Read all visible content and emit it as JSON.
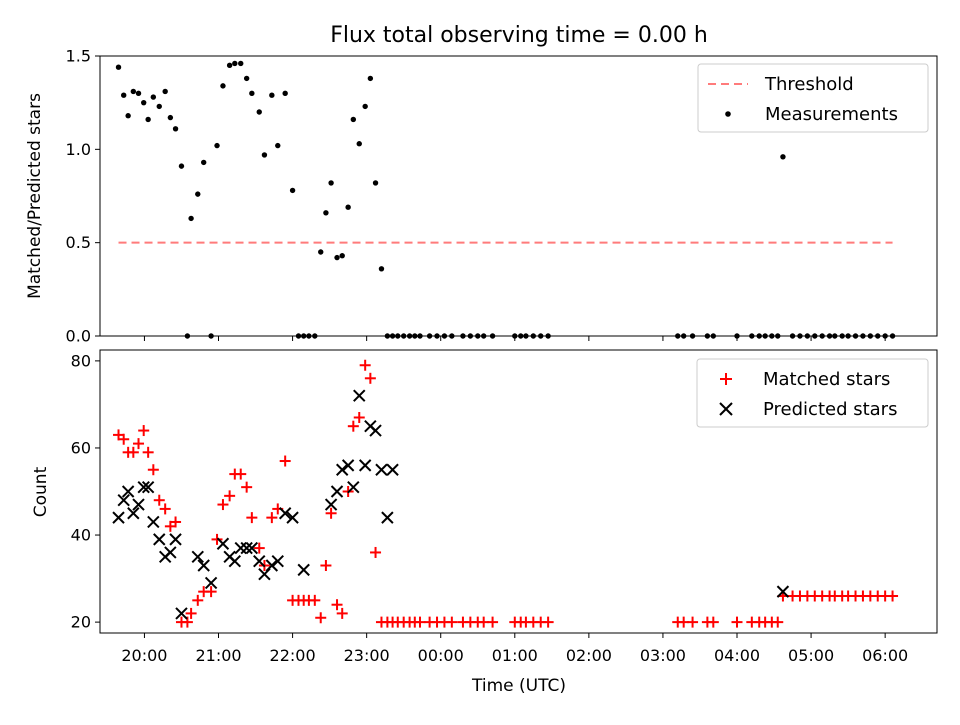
{
  "chart_data": [
    {
      "type": "scatter",
      "panel": "top",
      "title": "Flux total observing time = 0.00 h",
      "xlabel": "",
      "ylabel": "Matched/Predicted stars",
      "ylim": [
        0.0,
        1.5
      ],
      "yticks": [
        0.0,
        0.5,
        1.0,
        1.5
      ],
      "ytick_labels": [
        "0.0",
        "0.5",
        "1.0",
        "1.5"
      ],
      "xlim": [
        19.4,
        6.7
      ],
      "legend": {
        "position": "top-right",
        "entries": [
          "Threshold",
          "Measurements"
        ]
      },
      "threshold": {
        "name": "Threshold",
        "value": 0.5,
        "x_start": 19.65,
        "x_end": 6.1,
        "color": "#ff7b7b"
      },
      "series": [
        {
          "name": "Measurements",
          "color": "#000000",
          "marker": "dot",
          "points": [
            [
              19.65,
              1.44
            ],
            [
              19.72,
              1.29
            ],
            [
              19.78,
              1.18
            ],
            [
              19.85,
              1.31
            ],
            [
              19.92,
              1.3
            ],
            [
              19.99,
              1.25
            ],
            [
              20.05,
              1.16
            ],
            [
              20.12,
              1.28
            ],
            [
              20.2,
              1.23
            ],
            [
              20.28,
              1.31
            ],
            [
              20.35,
              1.17
            ],
            [
              20.42,
              1.11
            ],
            [
              20.5,
              0.91
            ],
            [
              20.58,
              0.0
            ],
            [
              20.63,
              0.63
            ],
            [
              20.72,
              0.76
            ],
            [
              20.8,
              0.93
            ],
            [
              20.9,
              0.0
            ],
            [
              20.98,
              1.02
            ],
            [
              21.06,
              1.34
            ],
            [
              21.15,
              1.45
            ],
            [
              21.22,
              1.46
            ],
            [
              21.3,
              1.46
            ],
            [
              21.38,
              1.38
            ],
            [
              21.45,
              1.3
            ],
            [
              21.55,
              1.2
            ],
            [
              21.62,
              0.97
            ],
            [
              21.72,
              1.29
            ],
            [
              21.8,
              1.02
            ],
            [
              21.9,
              1.3
            ],
            [
              22.0,
              0.78
            ],
            [
              22.08,
              0.0
            ],
            [
              22.15,
              0.0
            ],
            [
              22.22,
              0.0
            ],
            [
              22.3,
              0.0
            ],
            [
              22.38,
              0.45
            ],
            [
              22.45,
              0.66
            ],
            [
              22.52,
              0.82
            ],
            [
              22.6,
              0.42
            ],
            [
              22.67,
              0.43
            ],
            [
              22.75,
              0.69
            ],
            [
              22.82,
              1.16
            ],
            [
              22.9,
              1.03
            ],
            [
              22.98,
              1.23
            ],
            [
              23.05,
              1.38
            ],
            [
              23.12,
              0.82
            ],
            [
              23.2,
              0.36
            ],
            [
              23.28,
              0.0
            ],
            [
              23.35,
              0.0
            ],
            [
              23.42,
              0.0
            ],
            [
              23.5,
              0.0
            ],
            [
              23.58,
              0.0
            ],
            [
              23.65,
              0.0
            ],
            [
              23.72,
              0.0
            ],
            [
              23.85,
              0.0
            ],
            [
              23.95,
              0.0
            ],
            [
              24.05,
              0.0
            ],
            [
              24.15,
              0.0
            ],
            [
              24.3,
              0.0
            ],
            [
              24.4,
              0.0
            ],
            [
              24.5,
              0.0
            ],
            [
              24.58,
              0.0
            ],
            [
              24.7,
              0.0
            ],
            [
              25.0,
              0.0
            ],
            [
              25.08,
              0.0
            ],
            [
              25.15,
              0.0
            ],
            [
              25.25,
              0.0
            ],
            [
              25.35,
              0.0
            ],
            [
              25.45,
              0.0
            ],
            [
              27.2,
              0.0
            ],
            [
              27.28,
              0.0
            ],
            [
              27.4,
              0.0
            ],
            [
              27.6,
              0.0
            ],
            [
              27.68,
              0.0
            ],
            [
              28.0,
              0.0
            ],
            [
              28.2,
              0.0
            ],
            [
              28.3,
              0.0
            ],
            [
              28.38,
              0.0
            ],
            [
              28.47,
              0.0
            ],
            [
              28.55,
              0.0
            ],
            [
              28.62,
              0.96
            ],
            [
              28.75,
              0.0
            ],
            [
              28.85,
              0.0
            ],
            [
              28.95,
              0.0
            ],
            [
              29.05,
              0.0
            ],
            [
              29.15,
              0.0
            ],
            [
              29.25,
              0.0
            ],
            [
              29.32,
              0.0
            ],
            [
              29.42,
              0.0
            ],
            [
              29.5,
              0.0
            ],
            [
              29.6,
              0.0
            ],
            [
              29.7,
              0.0
            ],
            [
              29.8,
              0.0
            ],
            [
              29.9,
              0.0
            ],
            [
              30.0,
              0.0
            ],
            [
              30.1,
              0.0
            ]
          ]
        }
      ]
    },
    {
      "type": "scatter",
      "panel": "bottom",
      "title": "",
      "xlabel": "Time (UTC)",
      "ylabel": "Count",
      "ylim": [
        17.5,
        82.5
      ],
      "yticks": [
        20,
        40,
        60,
        80
      ],
      "ytick_labels": [
        "20",
        "40",
        "60",
        "80"
      ],
      "xlim": [
        19.4,
        6.7
      ],
      "xticks": [
        20,
        21,
        22,
        23,
        24,
        25,
        26,
        27,
        28,
        29,
        30
      ],
      "xtick_labels": [
        "20:00",
        "21:00",
        "22:00",
        "23:00",
        "00:00",
        "01:00",
        "02:00",
        "03:00",
        "04:00",
        "05:00",
        "06:00"
      ],
      "legend": {
        "position": "top-right",
        "entries": [
          "Matched stars",
          "Predicted stars"
        ]
      },
      "series": [
        {
          "name": "Matched stars",
          "color": "#ff0000",
          "marker": "plus",
          "points": [
            [
              19.65,
              63
            ],
            [
              19.72,
              62
            ],
            [
              19.78,
              59
            ],
            [
              19.85,
              59
            ],
            [
              19.92,
              61
            ],
            [
              19.99,
              64
            ],
            [
              20.05,
              59
            ],
            [
              20.12,
              55
            ],
            [
              20.2,
              48
            ],
            [
              20.28,
              46
            ],
            [
              20.35,
              42
            ],
            [
              20.42,
              43
            ],
            [
              20.5,
              20
            ],
            [
              20.58,
              20
            ],
            [
              20.63,
              22
            ],
            [
              20.72,
              25
            ],
            [
              20.8,
              27
            ],
            [
              20.9,
              27
            ],
            [
              20.98,
              39
            ],
            [
              21.06,
              47
            ],
            [
              21.15,
              49
            ],
            [
              21.22,
              54
            ],
            [
              21.3,
              54
            ],
            [
              21.38,
              51
            ],
            [
              21.45,
              44
            ],
            [
              21.55,
              37
            ],
            [
              21.62,
              33
            ],
            [
              21.72,
              44
            ],
            [
              21.8,
              46
            ],
            [
              21.9,
              57
            ],
            [
              22.0,
              25
            ],
            [
              22.08,
              25
            ],
            [
              22.15,
              25
            ],
            [
              22.22,
              25
            ],
            [
              22.3,
              25
            ],
            [
              22.38,
              21
            ],
            [
              22.45,
              33
            ],
            [
              22.52,
              45
            ],
            [
              22.6,
              24
            ],
            [
              22.67,
              22
            ],
            [
              22.75,
              50
            ],
            [
              22.82,
              65
            ],
            [
              22.9,
              67
            ],
            [
              22.98,
              79
            ],
            [
              23.05,
              76
            ],
            [
              23.12,
              36
            ],
            [
              23.2,
              20
            ],
            [
              23.28,
              20
            ],
            [
              23.35,
              20
            ],
            [
              23.42,
              20
            ],
            [
              23.5,
              20
            ],
            [
              23.58,
              20
            ],
            [
              23.65,
              20
            ],
            [
              23.72,
              20
            ],
            [
              23.85,
              20
            ],
            [
              23.95,
              20
            ],
            [
              24.05,
              20
            ],
            [
              24.15,
              20
            ],
            [
              24.3,
              20
            ],
            [
              24.4,
              20
            ],
            [
              24.5,
              20
            ],
            [
              24.58,
              20
            ],
            [
              24.7,
              20
            ],
            [
              25.0,
              20
            ],
            [
              25.08,
              20
            ],
            [
              25.15,
              20
            ],
            [
              25.25,
              20
            ],
            [
              25.35,
              20
            ],
            [
              25.45,
              20
            ],
            [
              27.2,
              20
            ],
            [
              27.28,
              20
            ],
            [
              27.4,
              20
            ],
            [
              27.6,
              20
            ],
            [
              27.68,
              20
            ],
            [
              28.0,
              20
            ],
            [
              28.2,
              20
            ],
            [
              28.3,
              20
            ],
            [
              28.38,
              20
            ],
            [
              28.47,
              20
            ],
            [
              28.55,
              20
            ],
            [
              28.62,
              26
            ],
            [
              28.75,
              26
            ],
            [
              28.85,
              26
            ],
            [
              28.95,
              26
            ],
            [
              29.05,
              26
            ],
            [
              29.15,
              26
            ],
            [
              29.25,
              26
            ],
            [
              29.32,
              26
            ],
            [
              29.42,
              26
            ],
            [
              29.5,
              26
            ],
            [
              29.6,
              26
            ],
            [
              29.7,
              26
            ],
            [
              29.8,
              26
            ],
            [
              29.9,
              26
            ],
            [
              30.0,
              26
            ],
            [
              30.1,
              26
            ]
          ]
        },
        {
          "name": "Predicted stars",
          "color": "#000000",
          "marker": "x",
          "points": [
            [
              19.65,
              44
            ],
            [
              19.72,
              48
            ],
            [
              19.78,
              50
            ],
            [
              19.85,
              45
            ],
            [
              19.92,
              47
            ],
            [
              19.99,
              51
            ],
            [
              20.05,
              51
            ],
            [
              20.12,
              43
            ],
            [
              20.2,
              39
            ],
            [
              20.28,
              35
            ],
            [
              20.35,
              36
            ],
            [
              20.42,
              39
            ],
            [
              20.5,
              22
            ],
            [
              20.72,
              35
            ],
            [
              20.8,
              33
            ],
            [
              20.9,
              29
            ],
            [
              21.06,
              38
            ],
            [
              21.15,
              35
            ],
            [
              21.22,
              34
            ],
            [
              21.3,
              37
            ],
            [
              21.38,
              37
            ],
            [
              21.45,
              37
            ],
            [
              21.55,
              34
            ],
            [
              21.62,
              31
            ],
            [
              21.72,
              33
            ],
            [
              21.8,
              34
            ],
            [
              21.9,
              45
            ],
            [
              22.0,
              44
            ],
            [
              22.15,
              32
            ],
            [
              22.52,
              47
            ],
            [
              22.6,
              50
            ],
            [
              22.67,
              55
            ],
            [
              22.75,
              56
            ],
            [
              22.82,
              51
            ],
            [
              22.9,
              72
            ],
            [
              22.98,
              56
            ],
            [
              23.05,
              65
            ],
            [
              23.12,
              64
            ],
            [
              23.2,
              55
            ],
            [
              23.28,
              44
            ],
            [
              23.35,
              55
            ],
            [
              28.62,
              27
            ]
          ]
        }
      ]
    }
  ]
}
